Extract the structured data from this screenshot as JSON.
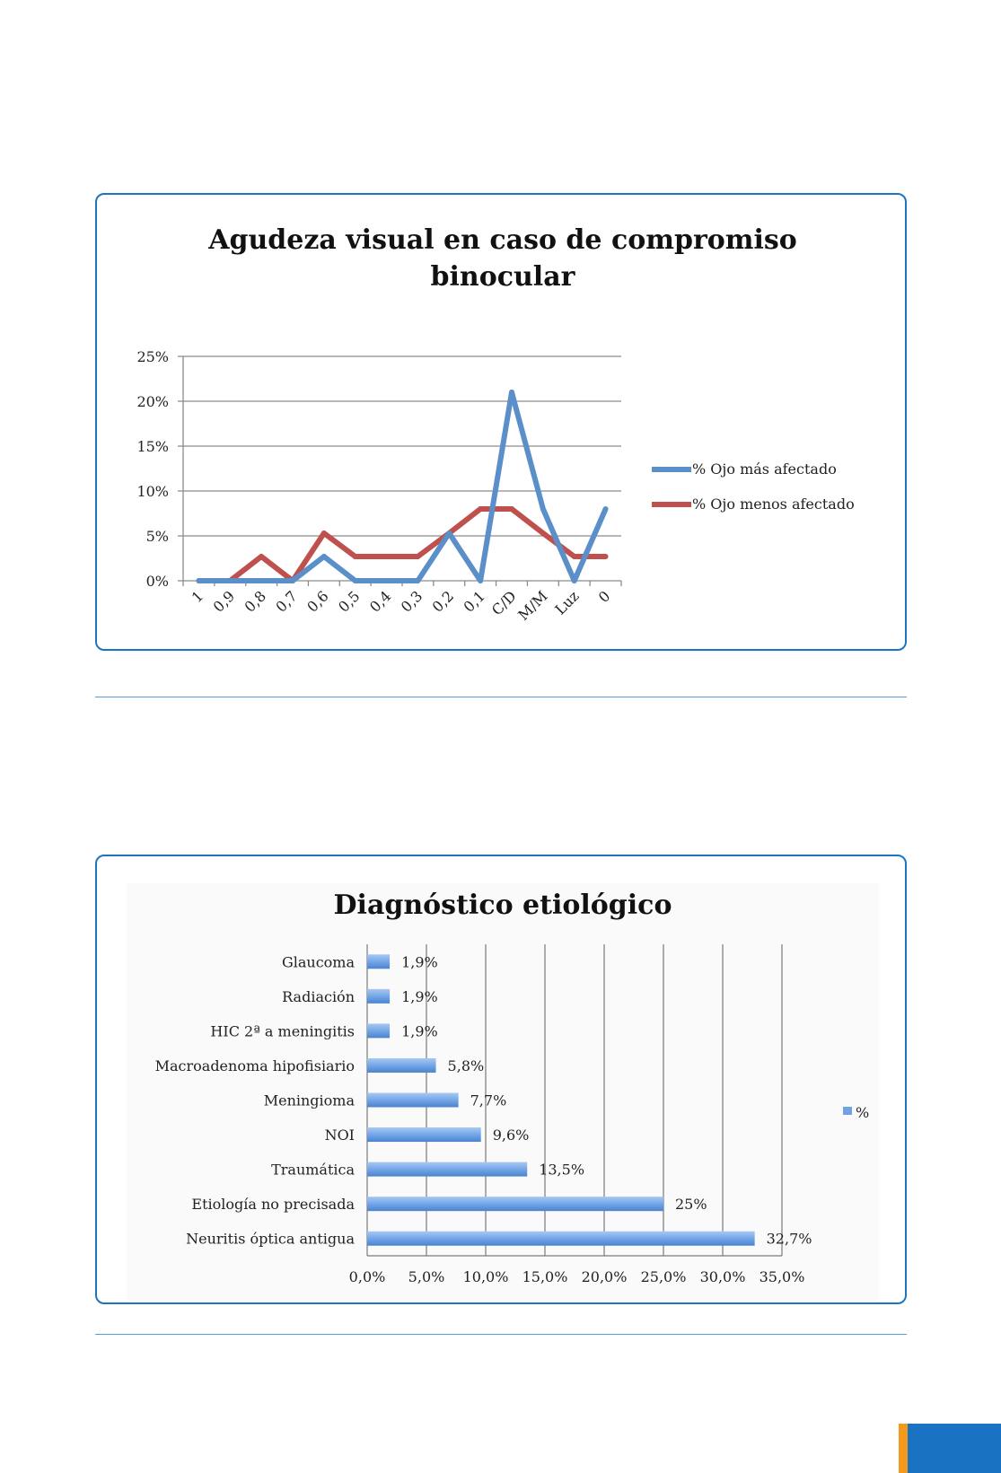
{
  "chart_data": [
    {
      "type": "line",
      "title_lines": [
        "Agudeza visual en caso de compromiso",
        "binocular"
      ],
      "xlabel": "",
      "ylabel": "",
      "ylim": [
        0,
        0.25
      ],
      "y_ticks": [
        "0%",
        "5%",
        "10%",
        "15%",
        "20%",
        "25%"
      ],
      "y_tick_values": [
        0,
        0.05,
        0.1,
        0.15,
        0.2,
        0.25
      ],
      "categories": [
        "1",
        "0,9",
        "0,8",
        "0,7",
        "0,6",
        "0,5",
        "0,4",
        "0,3",
        "0,2",
        "0,1",
        "C/D",
        "M/M",
        "Luz",
        "0"
      ],
      "grid": true,
      "legend_position": "right",
      "series": [
        {
          "name": "% Ojo más afectado",
          "color": "#5b8fc9",
          "values": [
            0,
            0,
            0,
            0,
            0.027,
            0,
            0,
            0,
            0.053,
            0,
            0.21,
            0.08,
            0,
            0.08
          ]
        },
        {
          "name": "% Ojo menos afectado",
          "color": "#c0504d",
          "values": [
            0,
            0,
            0.027,
            0,
            0.053,
            0.027,
            0.027,
            0.027,
            0.053,
            0.08,
            0.08,
            0.053,
            0.027,
            0.027
          ]
        }
      ]
    },
    {
      "type": "bar",
      "orientation": "horizontal",
      "title": "Diagnóstico etiológico",
      "xlabel": "",
      "ylabel": "",
      "xlim": [
        0,
        35
      ],
      "x_ticks": [
        "0,0%",
        "5,0%",
        "10,0%",
        "15,0%",
        "20,0%",
        "25,0%",
        "30,0%",
        "35,0%"
      ],
      "x_tick_values": [
        0,
        5,
        10,
        15,
        20,
        25,
        30,
        35
      ],
      "grid": true,
      "legend_position": "right",
      "categories": [
        "Glaucoma",
        "Radiación",
        "HIC 2ª a meningitis",
        "Macroadenoma hipofisiario",
        "Meningioma",
        "NOI",
        "Traumática",
        "Etiología no precisada",
        "Neuritis óptica antigua"
      ],
      "series": [
        {
          "name": "%",
          "color": "#6fa3e6",
          "values": [
            1.9,
            1.9,
            1.9,
            5.8,
            7.7,
            9.6,
            13.5,
            25,
            32.7
          ],
          "labels": [
            "1,9%",
            "1,9%",
            "1,9%",
            "5,8%",
            "7,7%",
            "9,6%",
            "13,5%",
            "25%",
            "32,7%"
          ]
        }
      ]
    }
  ]
}
